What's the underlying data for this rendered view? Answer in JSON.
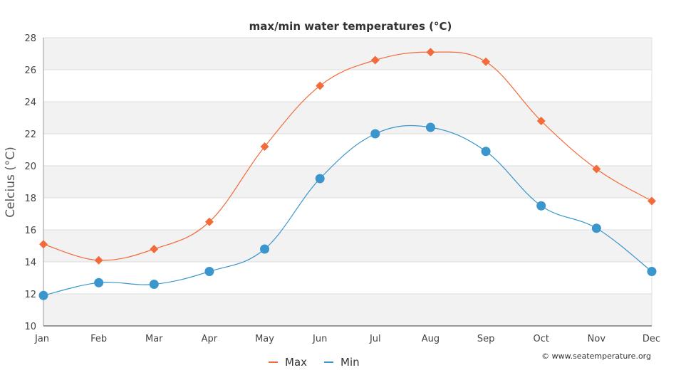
{
  "chart_data": {
    "type": "line",
    "title": "max/min water temperatures (°C)",
    "ylabel": "Celcius (°C)",
    "xlabel": "",
    "categories": [
      "Jan",
      "Feb",
      "Mar",
      "Apr",
      "May",
      "Jun",
      "Jul",
      "Aug",
      "Sep",
      "Oct",
      "Nov",
      "Dec"
    ],
    "ylim": [
      10,
      28
    ],
    "yticks": [
      10,
      12,
      14,
      16,
      18,
      20,
      22,
      24,
      26,
      28
    ],
    "ytick_labels": [
      "10",
      "12",
      "14",
      "16",
      "18",
      "20",
      "22",
      "24",
      "26",
      "28"
    ],
    "grid": true,
    "legend_position": "bottom-center",
    "series": [
      {
        "name": "Max",
        "color": "#f26b3a",
        "marker": "diamond",
        "values": [
          15.1,
          14.1,
          14.8,
          16.5,
          21.2,
          25.0,
          26.6,
          27.1,
          26.5,
          22.8,
          19.8,
          17.8
        ]
      },
      {
        "name": "Min",
        "color": "#3a96cc",
        "marker": "circle",
        "values": [
          11.9,
          12.7,
          12.6,
          13.4,
          14.8,
          19.2,
          22.0,
          22.4,
          20.9,
          17.5,
          16.1,
          13.4
        ]
      }
    ],
    "credit": "© www.seatemperature.org"
  }
}
